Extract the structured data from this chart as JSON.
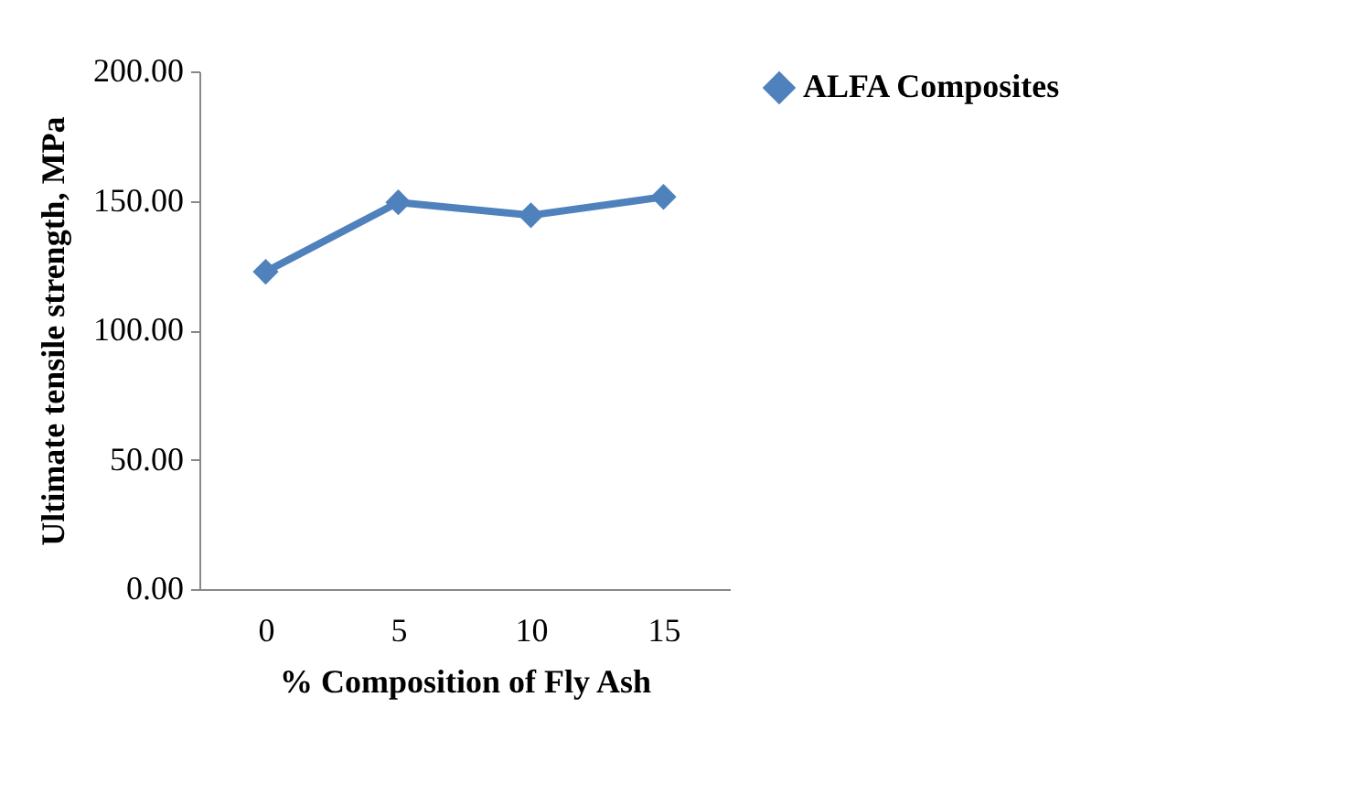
{
  "chart_data": {
    "type": "line",
    "xlabel": "% Composition  of Fly Ash",
    "ylabel": "Ultimate tensile strength, MPa",
    "categories": [
      "0",
      "5",
      "10",
      "15"
    ],
    "series": [
      {
        "name": "ALFA Composites",
        "color": "#4f81bd",
        "values": [
          122.6,
          149.4,
          144.4,
          151.5
        ]
      }
    ],
    "ylim": [
      0,
      200
    ],
    "yticks": [
      {
        "value": 0,
        "label": "0.00"
      },
      {
        "value": 50,
        "label": "50.00"
      },
      {
        "value": 100,
        "label": "100.00"
      },
      {
        "value": 150,
        "label": "150.00"
      },
      {
        "value": 200,
        "label": "200.00"
      }
    ],
    "grid": false,
    "legend": "right",
    "marker": "diamond",
    "line_style": "solid"
  }
}
